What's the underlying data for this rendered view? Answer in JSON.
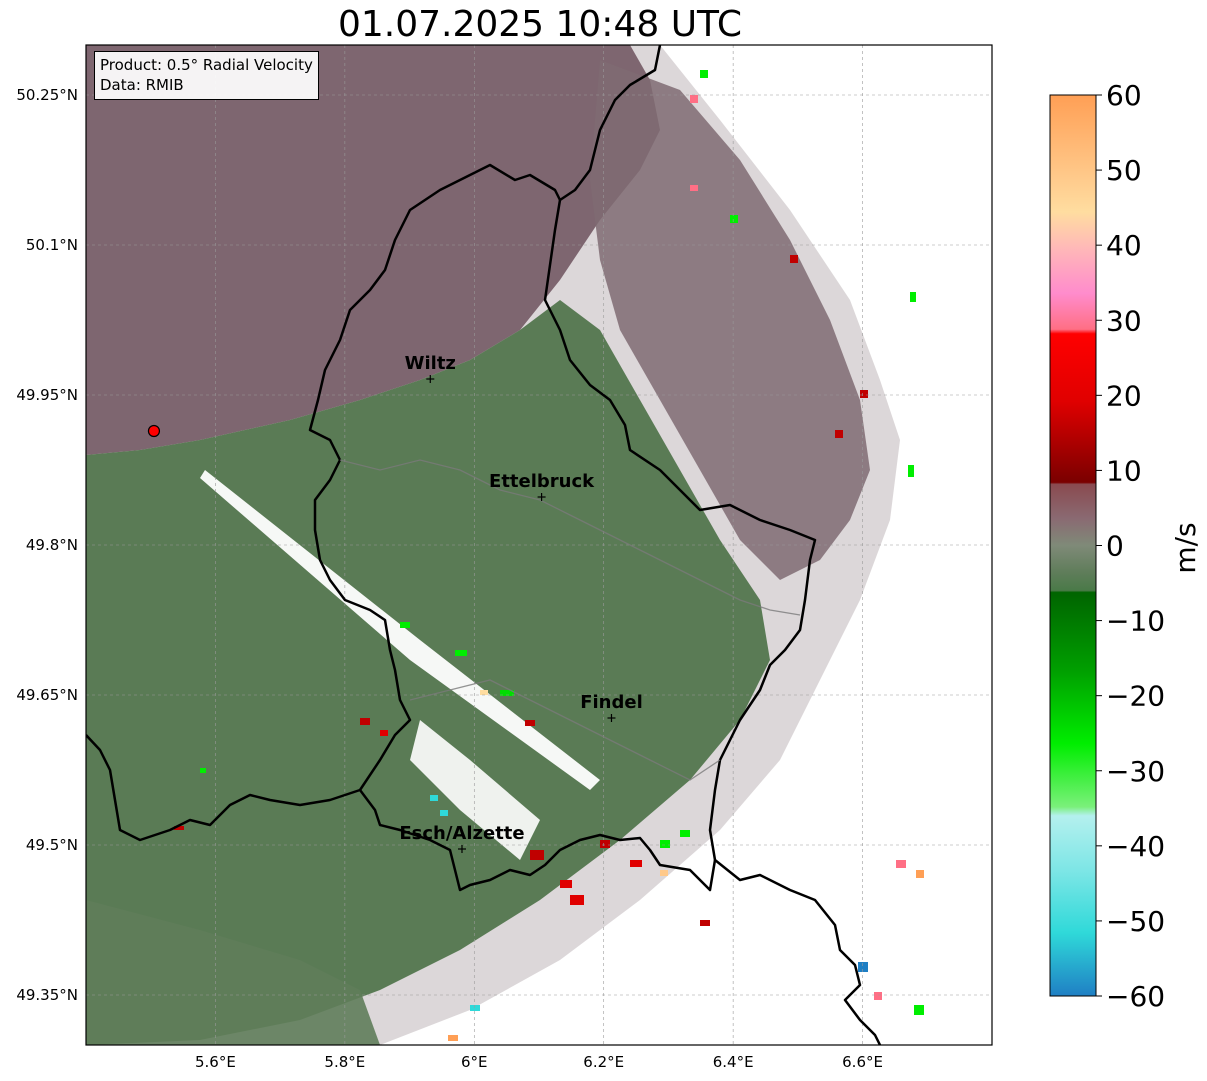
{
  "title": "01.07.2025 10:48 UTC",
  "info": {
    "product": "Product: 0.5° Radial Velocity",
    "data": "Data: RMIB"
  },
  "map": {
    "extent": {
      "lon_min": 5.4,
      "lon_max": 6.8,
      "lat_min": 49.3,
      "lat_max": 50.3
    },
    "x_ticks": [
      {
        "value": 5.6,
        "label": "5.6°E"
      },
      {
        "value": 5.8,
        "label": "5.8°E"
      },
      {
        "value": 6.0,
        "label": "6°E"
      },
      {
        "value": 6.2,
        "label": "6.2°E"
      },
      {
        "value": 6.4,
        "label": "6.4°E"
      },
      {
        "value": 6.6,
        "label": "6.6°E"
      }
    ],
    "y_ticks": [
      {
        "value": 50.25,
        "label": "50.25°N"
      },
      {
        "value": 50.1,
        "label": "50.1°N"
      },
      {
        "value": 49.95,
        "label": "49.95°N"
      },
      {
        "value": 49.8,
        "label": "49.8°N"
      },
      {
        "value": 49.65,
        "label": "49.65°N"
      },
      {
        "value": 49.5,
        "label": "49.5°N"
      },
      {
        "value": 49.35,
        "label": "49.35°N"
      }
    ],
    "grid": true,
    "radar_site": {
      "lon": 5.505,
      "lat": 49.914
    },
    "cities": [
      {
        "name": "Wiltz",
        "lon": 5.932,
        "lat": 49.966
      },
      {
        "name": "Ettelbruck",
        "lon": 6.104,
        "lat": 49.848
      },
      {
        "name": "Findel",
        "lon": 6.212,
        "lat": 49.627
      },
      {
        "name": "Esch/Alzette",
        "lon": 5.981,
        "lat": 49.496
      }
    ]
  },
  "colorbar": {
    "label": "m/s",
    "min": -60,
    "max": 60,
    "ticks": [
      "60",
      "50",
      "40",
      "30",
      "20",
      "10",
      "0",
      "−10",
      "−20",
      "−30",
      "−40",
      "−50",
      "−60"
    ],
    "colors": {
      "receding_light": "#ff9f55",
      "receding_pink": "#ff6f85",
      "receding_red": "#e00000",
      "receding_dark": "#7a0000",
      "near_zero_pos": "#8a6a72",
      "near_zero_neg": "#5f7d5a",
      "approaching_dark": "#006400",
      "approaching_green": "#00ee00",
      "approaching_light": "#b4f0ee",
      "approaching_cyan": "#2fd9d9",
      "approaching_blue": "#1f7fc4"
    }
  }
}
